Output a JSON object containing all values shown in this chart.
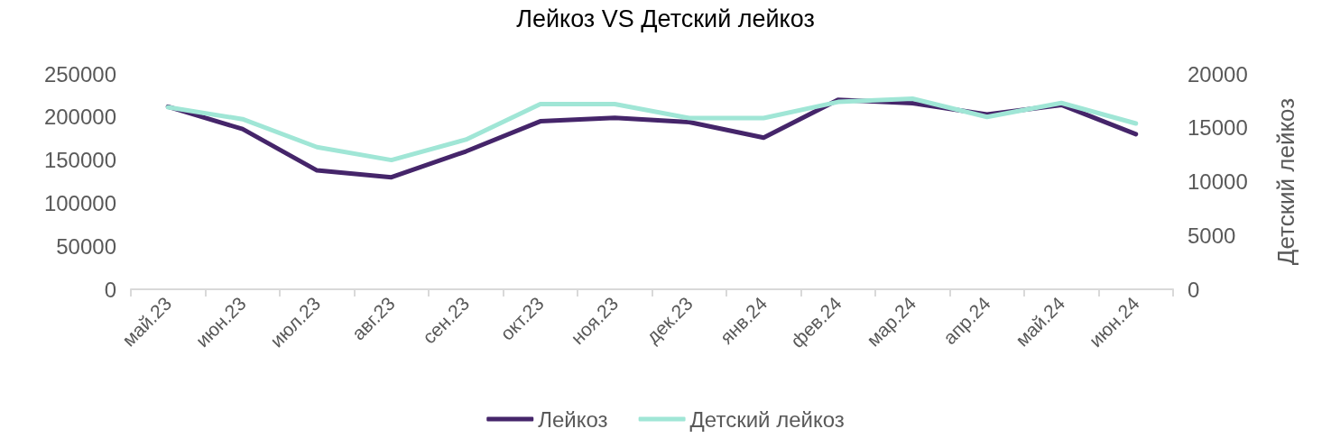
{
  "chart_data": {
    "type": "line",
    "title": "Лейкоз VS Детский лейкоз",
    "y2label": "Детский лейкоз",
    "categories": [
      "май.23",
      "июн.23",
      "июл.23",
      "авг.23",
      "сен.23",
      "окт.23",
      "ноя.23",
      "дек.23",
      "янв.24",
      "фев.24",
      "мар.24",
      "апр.24",
      "май.24",
      "июн.24"
    ],
    "series": [
      {
        "name": "Лейкоз",
        "color": "#45256a",
        "values": [
          212000,
          186000,
          138000,
          130000,
          160000,
          195000,
          199000,
          194000,
          176000,
          220000,
          216000,
          203000,
          214000,
          180000
        ]
      },
      {
        "name": "Детский лейкоз",
        "color": "#a0e6d6",
        "axis": "y2",
        "values": [
          16900,
          15800,
          13200,
          12000,
          13900,
          17200,
          17200,
          15900,
          15900,
          17400,
          17700,
          16000,
          17300,
          15400
        ]
      }
    ],
    "ylim": [
      0,
      250000
    ],
    "yticks": [
      0,
      50000,
      100000,
      150000,
      200000,
      250000
    ],
    "y2lim": [
      0,
      20000
    ],
    "y2ticks": [
      0,
      5000,
      10000,
      15000,
      20000
    ],
    "grid": false,
    "legend": "bottom",
    "marker": "none",
    "line_style": "solid"
  }
}
